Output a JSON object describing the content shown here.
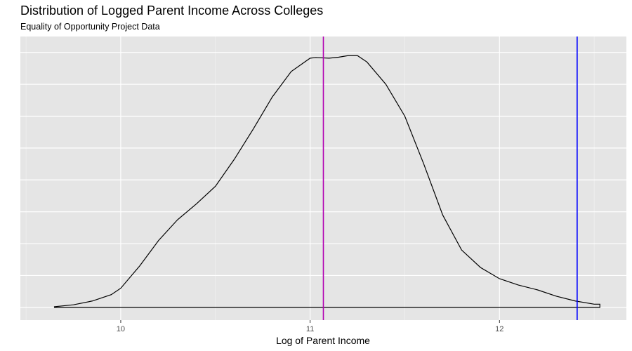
{
  "chart_data": {
    "type": "area",
    "title": "Distribution of Logged Parent Income Across Colleges",
    "subtitle": "Equality of Opportunity Project Data",
    "xlabel": "Log of Parent Income",
    "ylabel": "",
    "xlim": [
      9.47,
      12.67
    ],
    "ylim": [
      -0.04,
      0.85
    ],
    "x_ticks": [
      10,
      11,
      12
    ],
    "x_minor_ticks": [
      9.5,
      10.5,
      11.5,
      12.5
    ],
    "y_gridlines": [
      0,
      0.1,
      0.2,
      0.3,
      0.4,
      0.5,
      0.6,
      0.7,
      0.8
    ],
    "grid": true,
    "background": "#e5e5e5",
    "series": [
      {
        "x": [
          9.65,
          9.75,
          9.85,
          9.95,
          10.0,
          10.1,
          10.2,
          10.3,
          10.4,
          10.5,
          10.6,
          10.7,
          10.8,
          10.9,
          11.0,
          11.03,
          11.1,
          11.15,
          11.2,
          11.25,
          11.3,
          11.4,
          11.5,
          11.6,
          11.7,
          11.8,
          11.9,
          12.0,
          12.1,
          12.2,
          12.3,
          12.4,
          12.5,
          12.53
        ],
        "y": [
          0.002,
          0.008,
          0.02,
          0.04,
          0.06,
          0.13,
          0.21,
          0.275,
          0.325,
          0.38,
          0.465,
          0.56,
          0.66,
          0.74,
          0.782,
          0.784,
          0.782,
          0.785,
          0.79,
          0.79,
          0.77,
          0.7,
          0.6,
          0.45,
          0.29,
          0.18,
          0.125,
          0.09,
          0.07,
          0.055,
          0.035,
          0.02,
          0.01,
          0.01
        ],
        "color": "#000000"
      }
    ],
    "vlines": [
      {
        "x": 11.07,
        "color": "#b300b3"
      },
      {
        "x": 12.41,
        "color": "#0000ff"
      }
    ]
  }
}
